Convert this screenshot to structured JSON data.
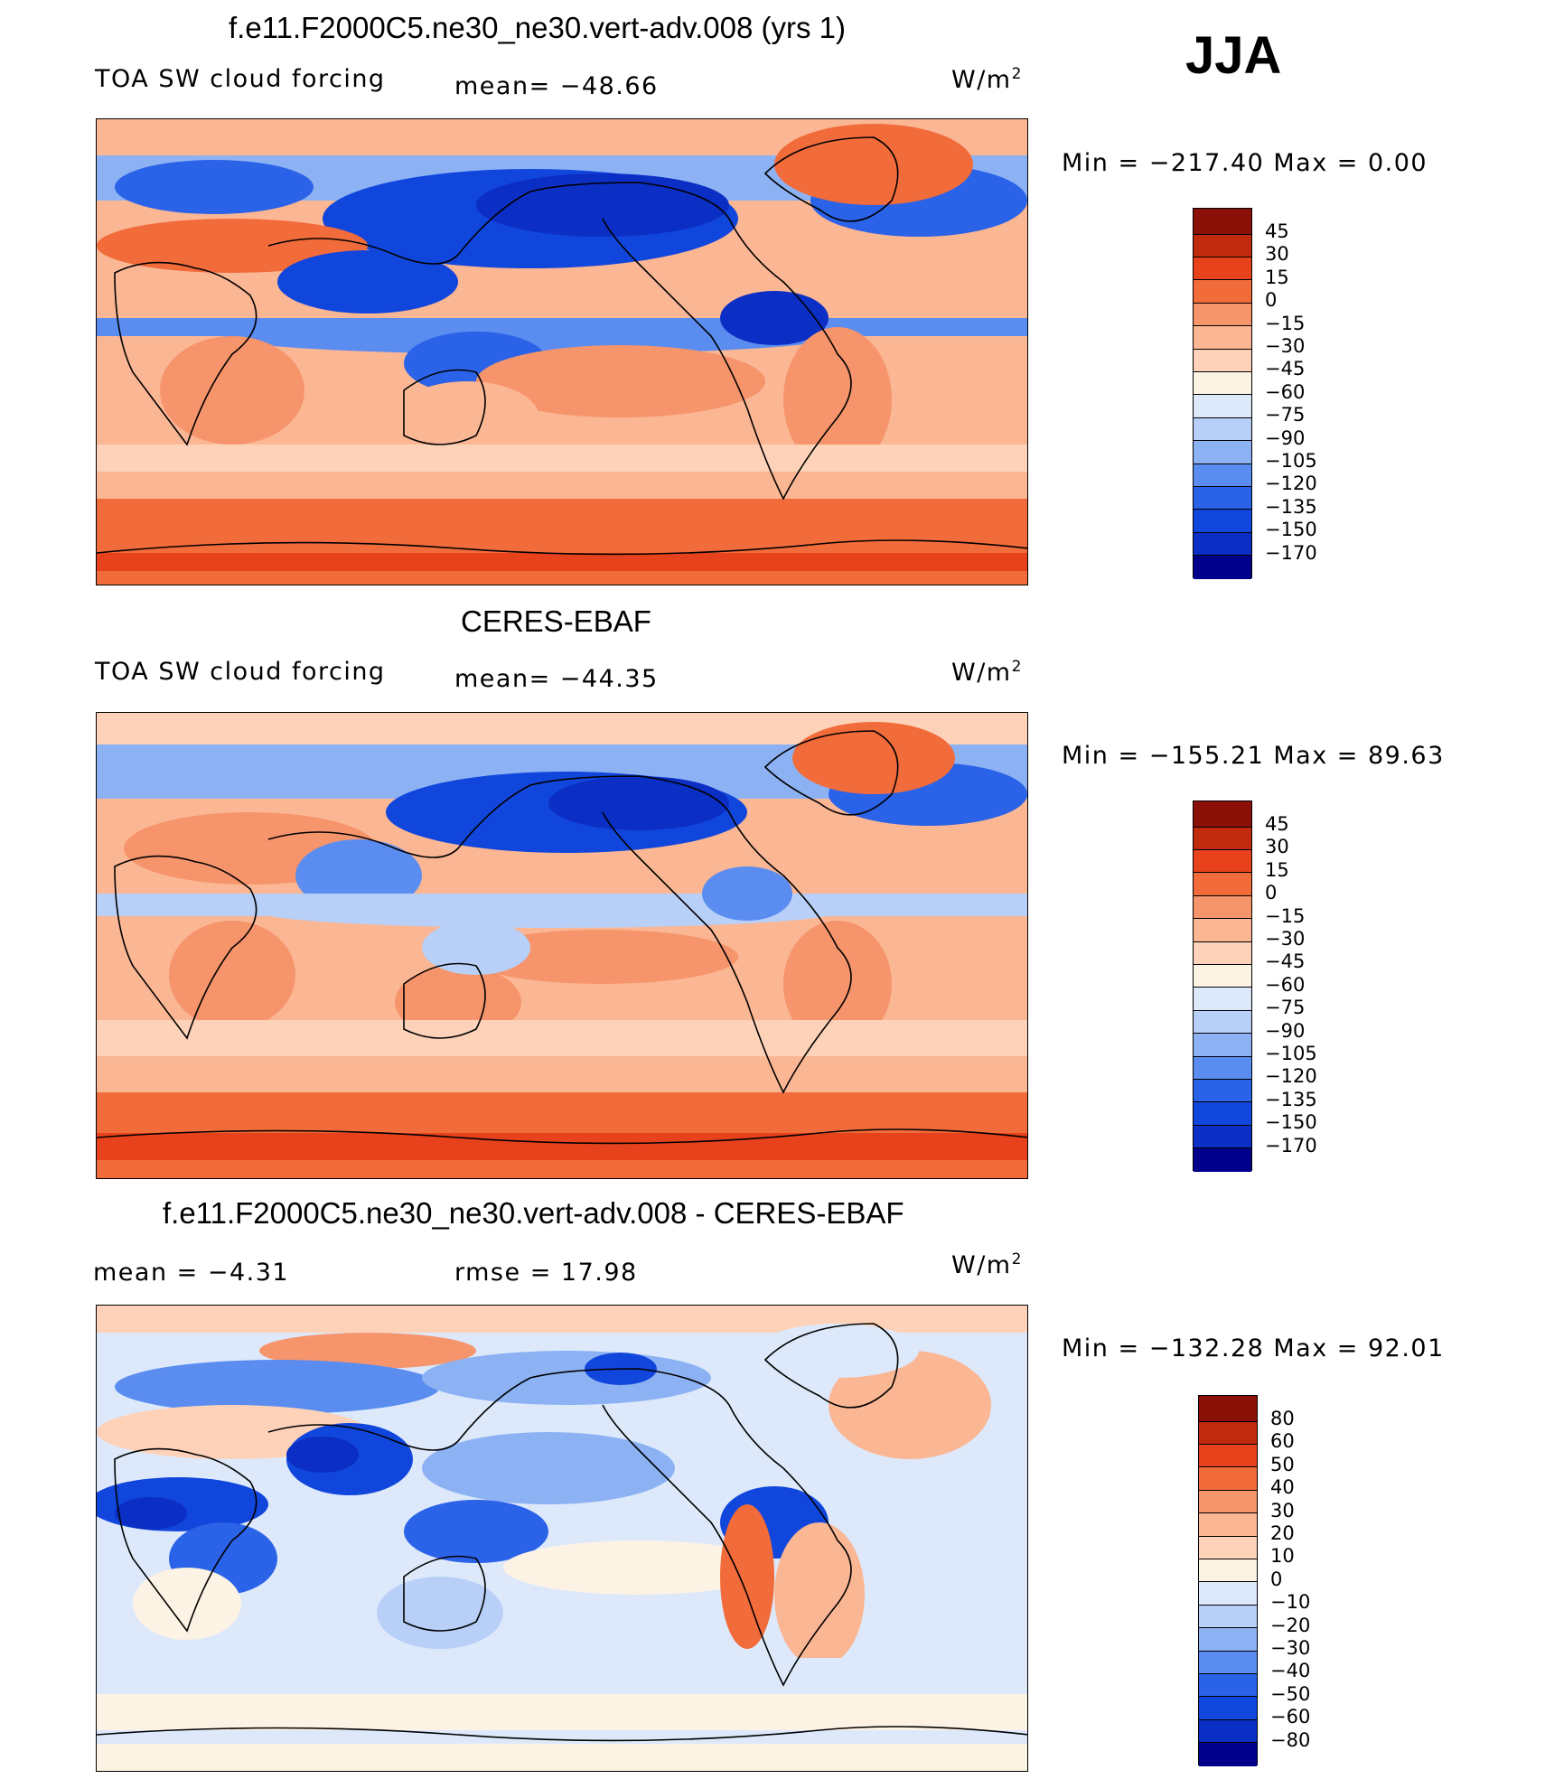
{
  "season": "JJA",
  "colors": {
    "main_scale": [
      "#00008b",
      "#0a1fa8",
      "#0b2ec4",
      "#1146dc",
      "#2a62e8",
      "#5b8df0",
      "#8db2f4",
      "#b8d0f8",
      "#dde9fb",
      "#fdf3e4",
      "#fdd2b8",
      "#fbb694",
      "#f6946b",
      "#f26b3a",
      "#e8421c",
      "#c02a0d",
      "#8b1008"
    ],
    "diff_scale": [
      "#00008b",
      "#0a1fa8",
      "#0b2ec4",
      "#1146dc",
      "#2a62e8",
      "#5b8df0",
      "#8db2f4",
      "#b8d0f8",
      "#dde9fb",
      "#fdf3e4",
      "#fdd2b8",
      "#fbb694",
      "#f6946b",
      "#f26b3a",
      "#e8421c",
      "#c02a0d",
      "#8b1008"
    ]
  },
  "panels": [
    {
      "title": "f.e11.F2000C5.ne30_ne30.vert-adv.008 (yrs 1)",
      "variable": "TOA SW cloud forcing",
      "stat": "mean=  −48.66",
      "units": "W/m",
      "units_sup": "2",
      "minmax": "Min  =  −217.40  Max  =      0.00",
      "colorbar_labels": [
        "45",
        "30",
        "15",
        "0",
        "−15",
        "−30",
        "−45",
        "−60",
        "−75",
        "−90",
        "−105",
        "−120",
        "−135",
        "−150",
        "−170"
      ]
    },
    {
      "title": "CERES-EBAF",
      "variable": "TOA SW cloud forcing",
      "stat": "mean=  −44.35",
      "units": "W/m",
      "units_sup": "2",
      "minmax": "Min  =  −155.21  Max  =    89.63",
      "colorbar_labels": [
        "45",
        "30",
        "15",
        "0",
        "−15",
        "−30",
        "−45",
        "−60",
        "−75",
        "−90",
        "−105",
        "−120",
        "−135",
        "−150",
        "−170"
      ]
    },
    {
      "title": "f.e11.F2000C5.ne30_ne30.vert-adv.008 - CERES-EBAF",
      "variable": "mean  =    −4.31",
      "stat": "rmse  =    17.98",
      "units": "W/m",
      "units_sup": "2",
      "minmax": "Min  =  −132.28  Max  =    92.01",
      "colorbar_labels": [
        "80",
        "60",
        "50",
        "40",
        "30",
        "20",
        "10",
        "0",
        "−10",
        "−20",
        "−30",
        "−40",
        "−50",
        "−60",
        "−80"
      ]
    }
  ]
}
